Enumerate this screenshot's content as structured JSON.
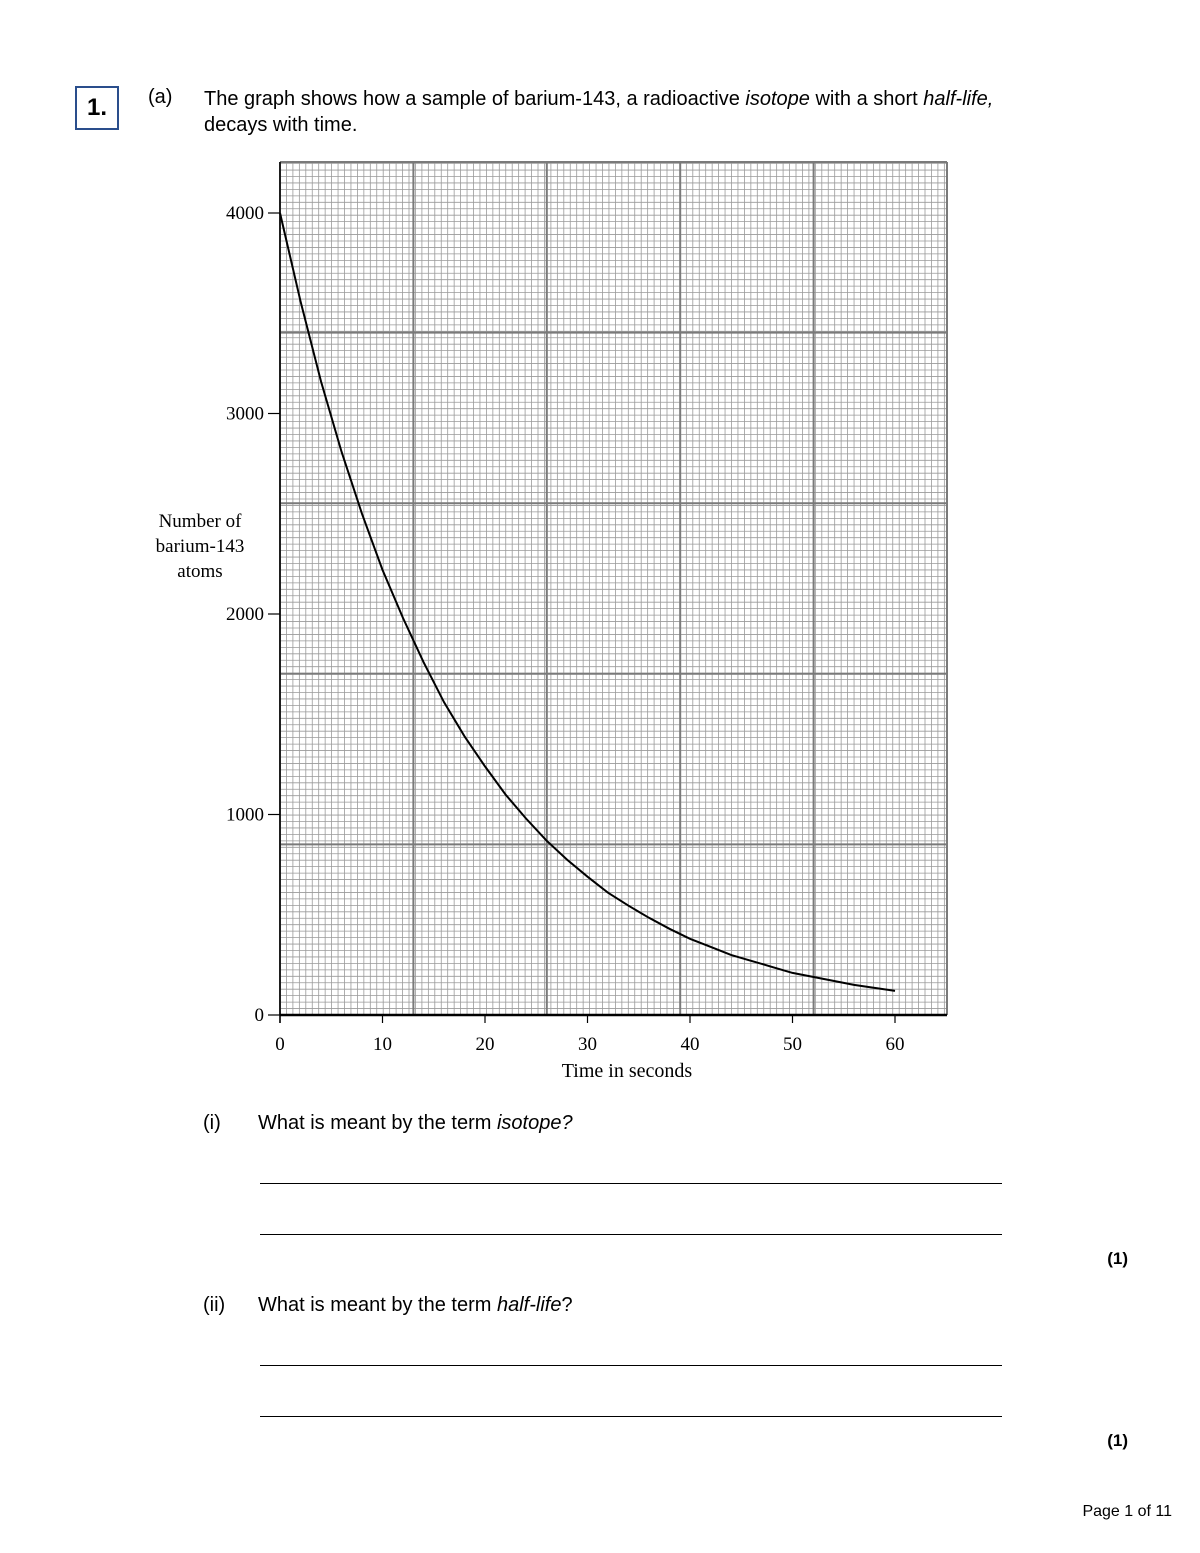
{
  "question": {
    "number": "1.",
    "part_a_label": "(a)",
    "stem_parts": [
      "The graph shows how a sample of barium-143, a radioactive ",
      "isotope",
      " with a short ",
      "half-life,",
      " decays with time."
    ]
  },
  "chart_data": {
    "type": "line",
    "title": "",
    "xlabel": "Time in seconds",
    "ylabel": "Number of barium-143 atoms",
    "xlim": [
      0,
      65
    ],
    "ylim": [
      0,
      4250
    ],
    "x_ticks": [
      0,
      10,
      20,
      30,
      40,
      50,
      60
    ],
    "y_ticks": [
      0,
      1000,
      2000,
      3000,
      4000
    ],
    "x_tick_labels": [
      "0",
      "10",
      "20",
      "30",
      "40",
      "50",
      "60"
    ],
    "y_tick_labels": [
      "0",
      "1000",
      "2000",
      "3000",
      "4000"
    ],
    "grid": true,
    "series": [
      {
        "x": [
          0,
          2,
          4,
          6,
          8,
          10,
          12,
          14,
          16,
          18,
          20,
          22,
          24,
          26,
          28,
          30,
          32,
          34,
          36,
          38,
          40,
          42,
          44,
          46,
          48,
          50,
          52,
          54,
          56,
          58,
          60
        ],
        "values": [
          4000,
          3560,
          3160,
          2810,
          2500,
          2220,
          1980,
          1760,
          1560,
          1390,
          1240,
          1100,
          980,
          870,
          775,
          690,
          610,
          545,
          485,
          430,
          380,
          340,
          300,
          270,
          240,
          210,
          190,
          170,
          150,
          135,
          120
        ]
      }
    ]
  },
  "sub_questions": [
    {
      "label": "(i)",
      "text_before": "What is meant by the term ",
      "term": "isotope?",
      "text_after": "",
      "marks": "(1)"
    },
    {
      "label": "(ii)",
      "text_before": "What is meant by the term ",
      "term": "half-life",
      "text_after": "?",
      "marks": "(1)"
    }
  ],
  "footer": {
    "page": "Page 1 of 11"
  }
}
